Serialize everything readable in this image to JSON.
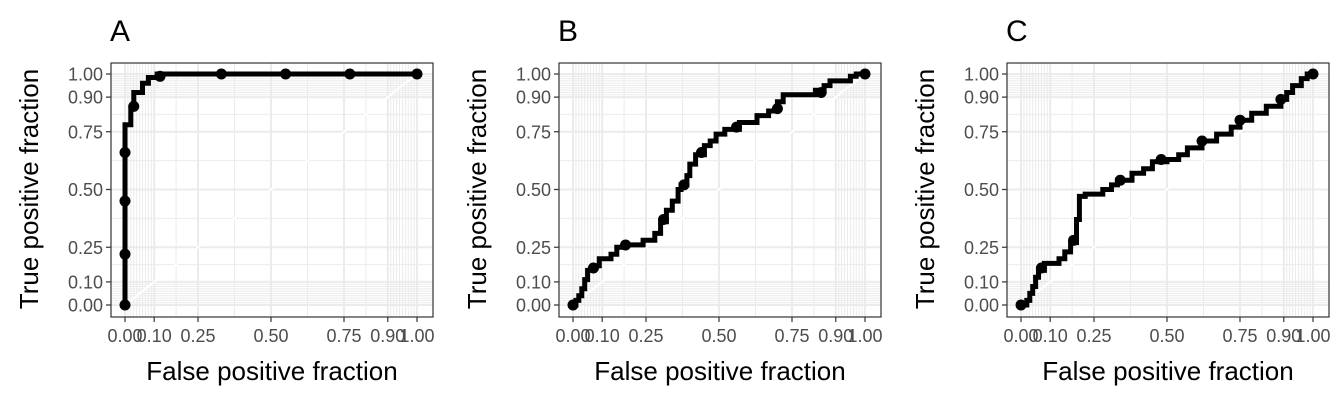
{
  "chart_data": [
    {
      "type": "line",
      "panel_label": "A",
      "xlabel": "False positive fraction",
      "ylabel": "True positive fraction",
      "xlim": [
        0,
        1
      ],
      "ylim": [
        0,
        1
      ],
      "ticks": [
        0,
        0.1,
        0.25,
        0.5,
        0.75,
        0.9,
        1
      ],
      "tick_labels": [
        "0.00",
        "0.10",
        "0.25",
        "0.50",
        "0.75",
        "0.90",
        "1.00"
      ],
      "reference_line": "diagonal",
      "curve": [
        [
          0,
          0
        ],
        [
          0,
          0.1
        ],
        [
          0,
          0.3
        ],
        [
          0,
          0.5
        ],
        [
          0,
          0.65
        ],
        [
          0,
          0.78
        ],
        [
          0.02,
          0.78
        ],
        [
          0.02,
          0.85
        ],
        [
          0.03,
          0.85
        ],
        [
          0.03,
          0.92
        ],
        [
          0.06,
          0.92
        ],
        [
          0.06,
          0.96
        ],
        [
          0.08,
          0.96
        ],
        [
          0.08,
          0.985
        ],
        [
          0.11,
          0.985
        ],
        [
          0.11,
          1
        ],
        [
          1,
          1
        ]
      ],
      "points": [
        [
          0,
          0
        ],
        [
          0,
          0.22
        ],
        [
          0,
          0.45
        ],
        [
          0,
          0.66
        ],
        [
          0.03,
          0.86
        ],
        [
          0.12,
          0.99
        ],
        [
          0.33,
          1
        ],
        [
          0.55,
          1
        ],
        [
          0.77,
          1
        ],
        [
          1,
          1
        ]
      ]
    },
    {
      "type": "line",
      "panel_label": "B",
      "xlabel": "False positive fraction",
      "ylabel": "True positive fraction",
      "xlim": [
        0,
        1
      ],
      "ylim": [
        0,
        1
      ],
      "ticks": [
        0,
        0.1,
        0.25,
        0.5,
        0.75,
        0.9,
        1
      ],
      "tick_labels": [
        "0.00",
        "0.10",
        "0.25",
        "0.50",
        "0.75",
        "0.90",
        "1.00"
      ],
      "reference_line": "diagonal",
      "curve": [
        [
          0,
          0
        ],
        [
          0.01,
          0
        ],
        [
          0.01,
          0.02
        ],
        [
          0.02,
          0.02
        ],
        [
          0.02,
          0.04
        ],
        [
          0.03,
          0.04
        ],
        [
          0.03,
          0.07
        ],
        [
          0.04,
          0.07
        ],
        [
          0.04,
          0.11
        ],
        [
          0.05,
          0.11
        ],
        [
          0.05,
          0.15
        ],
        [
          0.07,
          0.15
        ],
        [
          0.07,
          0.17
        ],
        [
          0.09,
          0.17
        ],
        [
          0.09,
          0.2
        ],
        [
          0.13,
          0.2
        ],
        [
          0.13,
          0.22
        ],
        [
          0.15,
          0.22
        ],
        [
          0.15,
          0.25
        ],
        [
          0.18,
          0.25
        ],
        [
          0.18,
          0.26
        ],
        [
          0.24,
          0.26
        ],
        [
          0.24,
          0.28
        ],
        [
          0.28,
          0.28
        ],
        [
          0.28,
          0.31
        ],
        [
          0.3,
          0.31
        ],
        [
          0.3,
          0.36
        ],
        [
          0.32,
          0.36
        ],
        [
          0.32,
          0.41
        ],
        [
          0.34,
          0.41
        ],
        [
          0.34,
          0.45
        ],
        [
          0.36,
          0.45
        ],
        [
          0.36,
          0.5
        ],
        [
          0.37,
          0.5
        ],
        [
          0.37,
          0.52
        ],
        [
          0.39,
          0.52
        ],
        [
          0.39,
          0.56
        ],
        [
          0.4,
          0.56
        ],
        [
          0.4,
          0.61
        ],
        [
          0.42,
          0.61
        ],
        [
          0.42,
          0.65
        ],
        [
          0.45,
          0.65
        ],
        [
          0.45,
          0.69
        ],
        [
          0.47,
          0.69
        ],
        [
          0.47,
          0.71
        ],
        [
          0.49,
          0.71
        ],
        [
          0.49,
          0.74
        ],
        [
          0.52,
          0.74
        ],
        [
          0.52,
          0.76
        ],
        [
          0.57,
          0.76
        ],
        [
          0.57,
          0.79
        ],
        [
          0.63,
          0.79
        ],
        [
          0.63,
          0.82
        ],
        [
          0.67,
          0.82
        ],
        [
          0.67,
          0.84
        ],
        [
          0.7,
          0.84
        ],
        [
          0.7,
          0.88
        ],
        [
          0.72,
          0.88
        ],
        [
          0.72,
          0.91
        ],
        [
          0.83,
          0.91
        ],
        [
          0.83,
          0.93
        ],
        [
          0.86,
          0.93
        ],
        [
          0.86,
          0.95
        ],
        [
          0.88,
          0.95
        ],
        [
          0.88,
          0.97
        ],
        [
          0.95,
          0.97
        ],
        [
          0.95,
          0.99
        ],
        [
          0.97,
          0.99
        ],
        [
          0.97,
          1
        ],
        [
          1,
          1
        ]
      ],
      "points": [
        [
          0,
          0
        ],
        [
          0.07,
          0.16
        ],
        [
          0.18,
          0.26
        ],
        [
          0.31,
          0.37
        ],
        [
          0.38,
          0.52
        ],
        [
          0.44,
          0.66
        ],
        [
          0.56,
          0.77
        ],
        [
          0.7,
          0.85
        ],
        [
          0.85,
          0.92
        ],
        [
          1,
          1
        ]
      ]
    },
    {
      "type": "line",
      "panel_label": "C",
      "xlabel": "False positive fraction",
      "ylabel": "True positive fraction",
      "xlim": [
        0,
        1
      ],
      "ylim": [
        0,
        1
      ],
      "ticks": [
        0,
        0.1,
        0.25,
        0.5,
        0.75,
        0.9,
        1
      ],
      "tick_labels": [
        "0.00",
        "0.10",
        "0.25",
        "0.50",
        "0.75",
        "0.90",
        "1.00"
      ],
      "reference_line": "diagonal",
      "curve": [
        [
          0,
          0
        ],
        [
          0.02,
          0
        ],
        [
          0.02,
          0.02
        ],
        [
          0.03,
          0.02
        ],
        [
          0.03,
          0.05
        ],
        [
          0.04,
          0.05
        ],
        [
          0.04,
          0.08
        ],
        [
          0.05,
          0.08
        ],
        [
          0.05,
          0.12
        ],
        [
          0.06,
          0.12
        ],
        [
          0.06,
          0.15
        ],
        [
          0.08,
          0.15
        ],
        [
          0.08,
          0.18
        ],
        [
          0.13,
          0.18
        ],
        [
          0.13,
          0.2
        ],
        [
          0.15,
          0.2
        ],
        [
          0.15,
          0.23
        ],
        [
          0.17,
          0.23
        ],
        [
          0.17,
          0.27
        ],
        [
          0.19,
          0.27
        ],
        [
          0.19,
          0.37
        ],
        [
          0.2,
          0.37
        ],
        [
          0.2,
          0.47
        ],
        [
          0.22,
          0.47
        ],
        [
          0.22,
          0.48
        ],
        [
          0.28,
          0.48
        ],
        [
          0.28,
          0.5
        ],
        [
          0.31,
          0.5
        ],
        [
          0.31,
          0.52
        ],
        [
          0.33,
          0.52
        ],
        [
          0.33,
          0.54
        ],
        [
          0.38,
          0.54
        ],
        [
          0.38,
          0.57
        ],
        [
          0.42,
          0.57
        ],
        [
          0.42,
          0.59
        ],
        [
          0.45,
          0.59
        ],
        [
          0.45,
          0.62
        ],
        [
          0.5,
          0.62
        ],
        [
          0.5,
          0.63
        ],
        [
          0.54,
          0.63
        ],
        [
          0.54,
          0.65
        ],
        [
          0.57,
          0.65
        ],
        [
          0.57,
          0.68
        ],
        [
          0.62,
          0.68
        ],
        [
          0.62,
          0.71
        ],
        [
          0.67,
          0.71
        ],
        [
          0.67,
          0.74
        ],
        [
          0.72,
          0.74
        ],
        [
          0.72,
          0.77
        ],
        [
          0.75,
          0.77
        ],
        [
          0.75,
          0.8
        ],
        [
          0.79,
          0.8
        ],
        [
          0.79,
          0.83
        ],
        [
          0.84,
          0.83
        ],
        [
          0.84,
          0.86
        ],
        [
          0.89,
          0.86
        ],
        [
          0.89,
          0.89
        ],
        [
          0.91,
          0.89
        ],
        [
          0.91,
          0.92
        ],
        [
          0.93,
          0.92
        ],
        [
          0.93,
          0.95
        ],
        [
          0.96,
          0.95
        ],
        [
          0.96,
          0.98
        ],
        [
          0.98,
          0.98
        ],
        [
          0.98,
          1
        ],
        [
          1,
          1
        ]
      ],
      "points": [
        [
          0,
          0
        ],
        [
          0.07,
          0.16
        ],
        [
          0.18,
          0.28
        ],
        [
          0.34,
          0.54
        ],
        [
          0.48,
          0.63
        ],
        [
          0.62,
          0.71
        ],
        [
          0.75,
          0.8
        ],
        [
          0.89,
          0.89
        ],
        [
          1,
          1
        ]
      ]
    }
  ]
}
